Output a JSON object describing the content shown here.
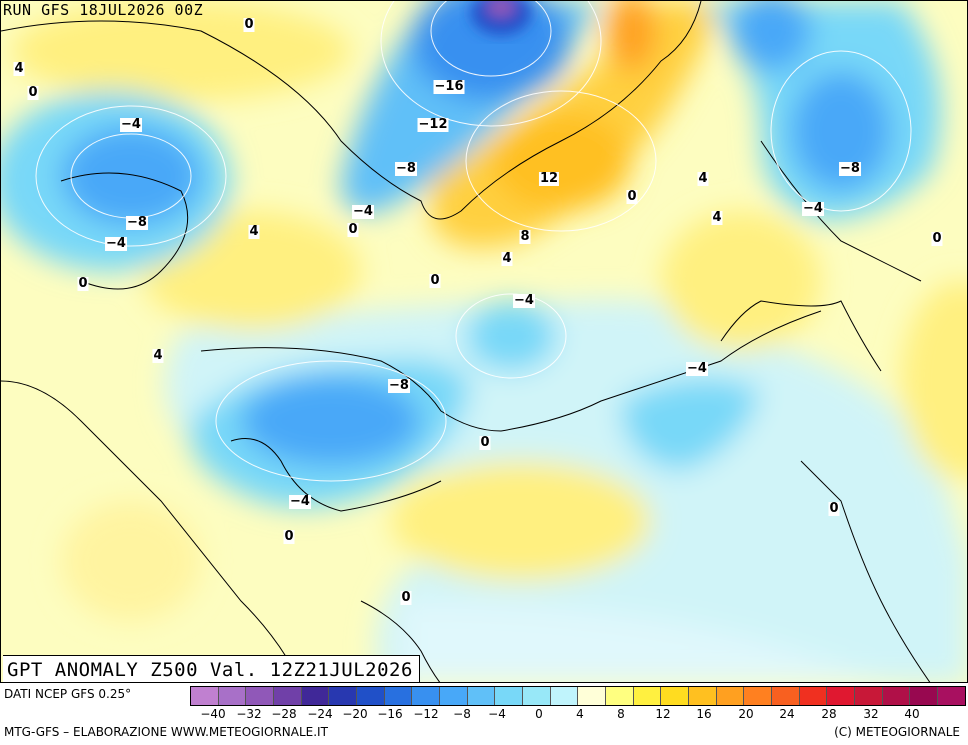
{
  "header": {
    "run_label": "RUN GFS 18JUL2026 00Z"
  },
  "map": {
    "title": "GPT ANOMALY Z500 Val. 12Z21JUL2026",
    "contour_labels": [
      {
        "text": "0"
      },
      {
        "text": "4"
      },
      {
        "text": "0"
      },
      {
        "text": "-4"
      },
      {
        "text": "-8"
      },
      {
        "text": "-4"
      },
      {
        "text": "0"
      },
      {
        "text": "4"
      },
      {
        "text": "-16"
      },
      {
        "text": "-12"
      },
      {
        "text": "-8"
      },
      {
        "text": "-4"
      },
      {
        "text": "0"
      },
      {
        "text": "4"
      },
      {
        "text": "12"
      },
      {
        "text": "8"
      },
      {
        "text": "4"
      },
      {
        "text": "0"
      },
      {
        "text": "0"
      },
      {
        "text": "4"
      },
      {
        "text": "4"
      },
      {
        "text": "-8"
      },
      {
        "text": "-4"
      },
      {
        "text": "0"
      },
      {
        "text": "-4"
      },
      {
        "text": "-8"
      },
      {
        "text": "-4"
      },
      {
        "text": "0"
      },
      {
        "text": "-4"
      },
      {
        "text": "0"
      },
      {
        "text": "0"
      },
      {
        "text": "0"
      }
    ]
  },
  "legend": {
    "source_label": "DATI NCEP GFS 0.25°",
    "colors": [
      "#c080d0",
      "#a870c8",
      "#9058b8",
      "#7040a8",
      "#402898",
      "#2838b0",
      "#2050c8",
      "#2870e0",
      "#3890f0",
      "#48a8f8",
      "#60c0f8",
      "#78d8f8",
      "#98e8f8",
      "#c0f4fc",
      "#ffffd8",
      "#ffff80",
      "#fff040",
      "#ffdc20",
      "#ffc020",
      "#ffa020",
      "#ff8020",
      "#f86020",
      "#f03020",
      "#e01830",
      "#c81838",
      "#b01048",
      "#980850",
      "#a81060"
    ],
    "ticks": [
      "-40",
      "-32",
      "-28",
      "-24",
      "-20",
      "-16",
      "-12",
      "-8",
      "-4",
      "0",
      "4",
      "8",
      "12",
      "16",
      "20",
      "24",
      "28",
      "32",
      "40"
    ]
  },
  "footer": {
    "credit_left": "MTG-GFS – ELABORAZIONE WWW.METEOGIORNALE.IT",
    "credit_right": "(C) METEOGIORNALE"
  }
}
